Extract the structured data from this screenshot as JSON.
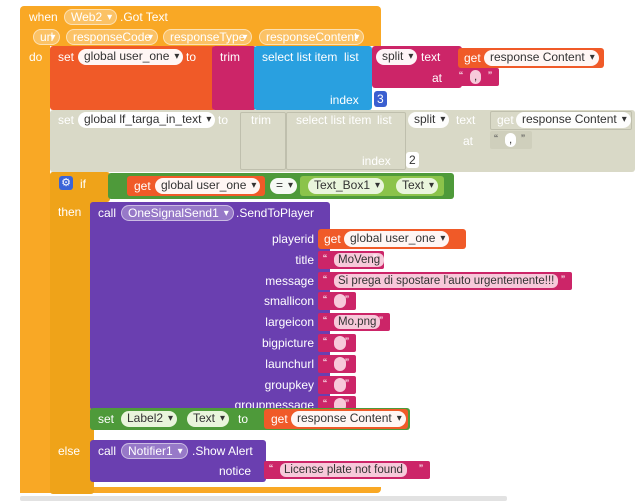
{
  "event": {
    "when": "when",
    "component": "Web2",
    "event_name": ".Got Text",
    "params": [
      "url",
      "responseCode",
      "responseType",
      "responseContent"
    ],
    "do": "do"
  },
  "labels": {
    "set": "set",
    "to": "to",
    "trim": "trim",
    "select_list_item": "select list item",
    "list": "list",
    "index": "index",
    "split": "split",
    "text": "text",
    "at": "at",
    "get": "get",
    "if": "if",
    "then": "then",
    "else": "else",
    "call": "call",
    "eq": "="
  },
  "set1": {
    "var": "global user_one",
    "get": "response Content",
    "split_at": ",",
    "index": "3"
  },
  "set2": {
    "var": "global lf_targa_in_text",
    "get": "response Content",
    "split_at": ",",
    "index": "2"
  },
  "if_block": {
    "left_get": "global user_one",
    "right_component": "Text_Box1",
    "right_prop": "Text"
  },
  "onesignal": {
    "component": "OneSignalSend1",
    "method": ".SendToPlayer",
    "params": [
      {
        "name": "playerid",
        "kind": "get",
        "value": "global user_one"
      },
      {
        "name": "title",
        "kind": "text",
        "value": "MoVeng"
      },
      {
        "name": "message",
        "kind": "text",
        "value": "Si prega di spostare l'auto urgentemente!!!"
      },
      {
        "name": "smallicon",
        "kind": "text",
        "value": ""
      },
      {
        "name": "largeicon",
        "kind": "text",
        "value": "Mo.png"
      },
      {
        "name": "bigpicture",
        "kind": "text",
        "value": ""
      },
      {
        "name": "launchurl",
        "kind": "text",
        "value": ""
      },
      {
        "name": "groupkey",
        "kind": "text",
        "value": ""
      },
      {
        "name": "groupmessage",
        "kind": "text",
        "value": ""
      }
    ]
  },
  "set_label": {
    "component": "Label2",
    "prop": "Text",
    "get": "response Content"
  },
  "notifier": {
    "component": "Notifier1",
    "method": ".Show Alert",
    "param": "notice",
    "value": "License plate not found"
  },
  "colors": {
    "event": "#f9a825",
    "variable": "#f05a28",
    "text": "#cc2568",
    "list": "#29a0e0",
    "control": "#efa319",
    "logic": "#4e9a3a",
    "component": "#6a3fb0",
    "disabled": "#d9d9c7"
  }
}
